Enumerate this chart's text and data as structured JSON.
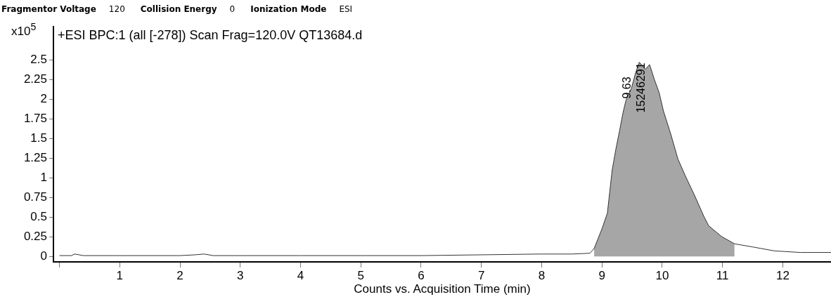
{
  "chart_data": {
    "type": "line",
    "subtitle": "+ESI BPC:1 (all [-278]) Scan Frag=120.0V QT13684.d",
    "xlabel": "Counts vs. Acquisition Time (min)",
    "ylabel": "x10$^{5}$",
    "annotations": [
      "Fragmentor Voltage",
      "120",
      "Collision Energy",
      "0",
      "Ionization Mode",
      "ESI",
      {
        "text": "9.63",
        "x": 9.63,
        "y": 2.47
      },
      {
        "text": "15246291",
        "x": 9.63,
        "y": 2.47
      }
    ],
    "series": [
      {
        "type": "line",
        "color": "#333333",
        "x": [
          0.0,
          0.2,
          0.25,
          0.4,
          1.0,
          2.0,
          2.25,
          2.4,
          2.55,
          3.0,
          4.0,
          5.0,
          6.0,
          7.0,
          8.0,
          8.5,
          8.8,
          8.87,
          9.0,
          9.09,
          9.17,
          9.23,
          9.29,
          9.35,
          9.4,
          9.49,
          9.56,
          9.62,
          9.72,
          9.79,
          9.87,
          9.95,
          10.02,
          10.14,
          10.26,
          10.38,
          10.54,
          10.69,
          10.77,
          10.99,
          11.2,
          11.5,
          11.86,
          12.29,
          12.8
        ],
        "values": [
          0.01,
          0.01,
          0.03,
          0.01,
          0.01,
          0.01,
          0.02,
          0.03,
          0.01,
          0.01,
          0.01,
          0.01,
          0.01,
          0.02,
          0.03,
          0.03,
          0.04,
          0.1,
          0.35,
          0.55,
          1.1,
          1.36,
          1.59,
          1.83,
          1.99,
          2.14,
          2.34,
          2.47,
          2.38,
          2.44,
          2.25,
          2.08,
          1.85,
          1.56,
          1.24,
          1.03,
          0.77,
          0.51,
          0.39,
          0.25,
          0.16,
          0.12,
          0.07,
          0.05,
          0.05
        ]
      },
      {
        "type": "area",
        "color": "#a6a6a6",
        "x": [
          8.87,
          9.0,
          9.09,
          9.17,
          9.23,
          9.29,
          9.35,
          9.4,
          9.49,
          9.56,
          9.62,
          9.72,
          9.79,
          9.87,
          9.95,
          10.02,
          10.14,
          10.26,
          10.38,
          10.54,
          10.69,
          10.77,
          10.99,
          11.2
        ],
        "values": [
          0.1,
          0.35,
          0.55,
          1.1,
          1.36,
          1.59,
          1.83,
          1.99,
          2.14,
          2.34,
          2.47,
          2.38,
          2.44,
          2.25,
          2.08,
          1.85,
          1.56,
          1.24,
          1.03,
          0.77,
          0.51,
          0.39,
          0.25,
          0.16
        ]
      }
    ],
    "xlim": [
      -0.1,
      12.8
    ],
    "xticks": [
      {
        "value": 0,
        "label": null
      },
      1,
      2,
      3,
      4,
      5,
      6,
      7,
      8,
      9,
      10,
      11,
      12
    ],
    "ylim": [
      -0.07,
      2.92
    ],
    "yticks": [
      0,
      0.25,
      0.5,
      0.75,
      1,
      1.25,
      1.5,
      1.75,
      2,
      2.25,
      2.5
    ]
  }
}
